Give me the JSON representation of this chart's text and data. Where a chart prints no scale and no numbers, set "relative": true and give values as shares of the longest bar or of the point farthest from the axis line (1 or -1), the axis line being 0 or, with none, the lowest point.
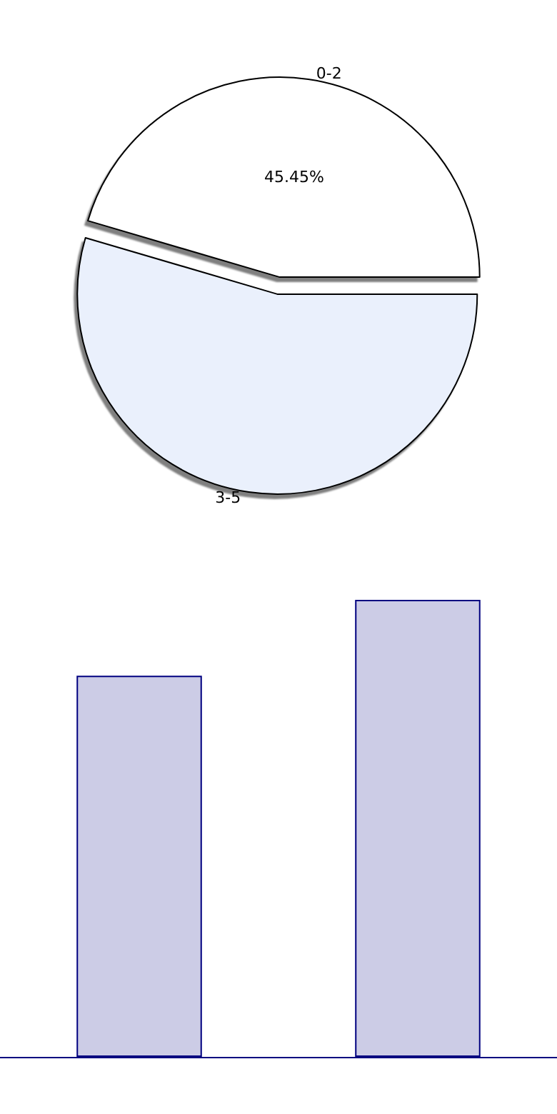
{
  "chart_data": [
    {
      "type": "pie",
      "categories": [
        "0-2",
        "3-5"
      ],
      "values": [
        45.45,
        54.55
      ],
      "colors": [
        "#ffffff",
        "#eaf0fc"
      ],
      "value_labels": [
        "45.45%",
        null
      ]
    },
    {
      "type": "bar",
      "categories": [
        null,
        null
      ],
      "values": [
        0.834,
        1
      ],
      "color": "#ccccE6",
      "relative": true
    }
  ]
}
